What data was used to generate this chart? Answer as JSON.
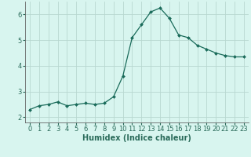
{
  "x": [
    0,
    1,
    2,
    3,
    4,
    5,
    6,
    7,
    8,
    9,
    10,
    11,
    12,
    13,
    14,
    15,
    16,
    17,
    18,
    19,
    20,
    21,
    22,
    23
  ],
  "y": [
    2.3,
    2.45,
    2.5,
    2.6,
    2.45,
    2.5,
    2.55,
    2.5,
    2.55,
    2.8,
    3.6,
    5.1,
    5.6,
    6.1,
    6.25,
    5.85,
    5.2,
    5.1,
    4.8,
    4.65,
    4.5,
    4.4,
    4.35,
    4.35
  ],
  "line_color": "#1a6b5a",
  "marker": "D",
  "marker_size": 2.0,
  "bg_color": "#d8f5ef",
  "grid_color": "#b8d8d0",
  "axis_color": "#666666",
  "xlabel": "Humidex (Indice chaleur)",
  "xlim": [
    -0.5,
    23.5
  ],
  "ylim": [
    1.8,
    6.5
  ],
  "yticks": [
    2,
    3,
    4,
    5,
    6
  ],
  "xticks": [
    0,
    1,
    2,
    3,
    4,
    5,
    6,
    7,
    8,
    9,
    10,
    11,
    12,
    13,
    14,
    15,
    16,
    17,
    18,
    19,
    20,
    21,
    22,
    23
  ],
  "font_color": "#2a6b5a",
  "xlabel_fontsize": 7,
  "tick_fontsize": 6
}
